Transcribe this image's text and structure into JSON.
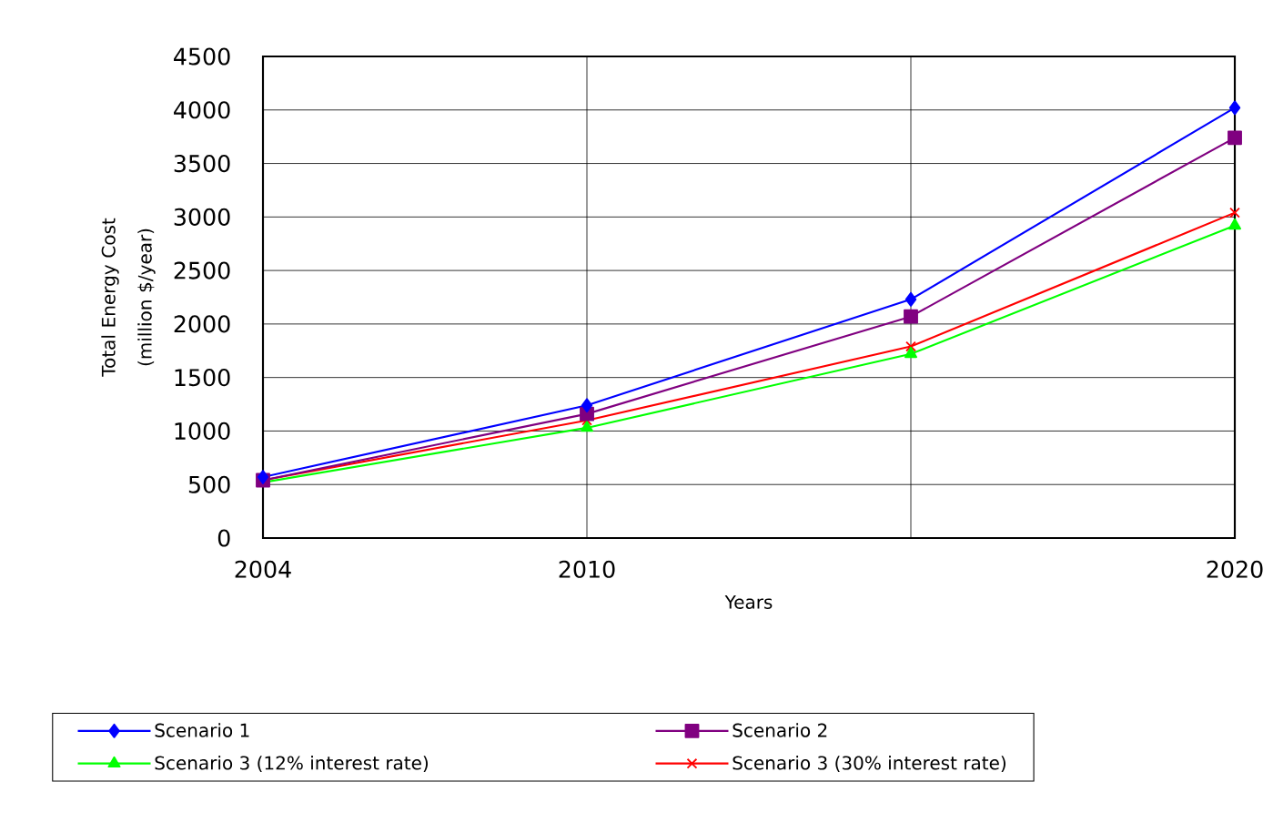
{
  "chart_data": {
    "type": "line",
    "xlabel": "Years",
    "ylabel": "Total Energy Cost (million $/year)",
    "categories": [
      "2004",
      "2010",
      null,
      "2020"
    ],
    "series": [
      {
        "name": "Scenario 1",
        "color": "#0000ff",
        "marker": "diamond",
        "values": [
          570,
          1240,
          2230,
          4020
        ]
      },
      {
        "name": "Scenario 2",
        "color": "#800080",
        "marker": "square",
        "values": [
          540,
          1160,
          2070,
          3740
        ]
      },
      {
        "name": "Scenario 3 (12% interest rate)",
        "color": "#00ff00",
        "marker": "triangle",
        "values": [
          520,
          1030,
          1720,
          2920
        ]
      },
      {
        "name": "Scenario 3 (30% interest rate)",
        "color": "#ff0000",
        "marker": "cross",
        "values": [
          540,
          1100,
          1790,
          3040
        ]
      }
    ],
    "ylim": [
      0,
      4500
    ],
    "yticks": [
      0,
      500,
      1000,
      1500,
      2000,
      2500,
      3000,
      3500,
      4000,
      4500
    ],
    "grid": true,
    "legend": "bottom",
    "line_style": "solid"
  }
}
